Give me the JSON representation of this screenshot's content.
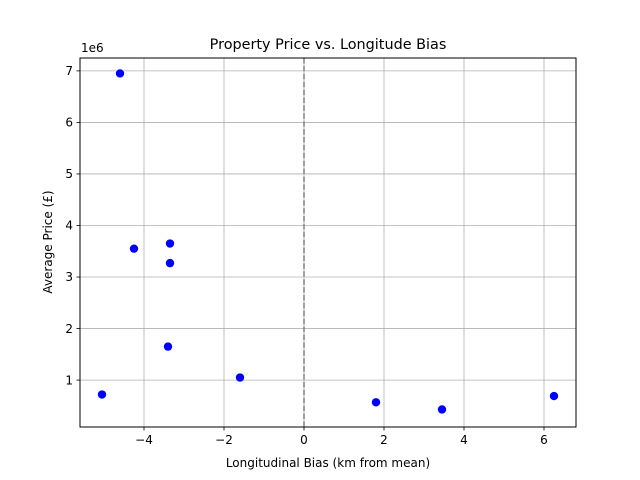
{
  "chart_data": {
    "type": "scatter",
    "title": "Property Price vs. Longitude Bias",
    "xlabel": "Longitudinal Bias (km from mean)",
    "ylabel": "Average Price (£)",
    "y_offset_label": "1e6",
    "xlim": [
      -5.6,
      6.8
    ],
    "ylim": [
      90000,
      7250000
    ],
    "x_ticks": [
      -4,
      -2,
      0,
      2,
      4,
      6
    ],
    "x_tick_labels": [
      "−4",
      "−2",
      "0",
      "2",
      "4",
      "6"
    ],
    "y_ticks": [
      1000000,
      2000000,
      3000000,
      4000000,
      5000000,
      6000000,
      7000000
    ],
    "y_tick_labels": [
      "1",
      "2",
      "3",
      "4",
      "5",
      "6",
      "7"
    ],
    "grid": true,
    "reference_line": {
      "x": 0,
      "style": "dashed",
      "color": "#808080"
    },
    "marker_color": "#0000ff",
    "points": [
      {
        "x": -5.05,
        "y": 720000
      },
      {
        "x": -4.6,
        "y": 6950000
      },
      {
        "x": -4.25,
        "y": 3550000
      },
      {
        "x": -3.35,
        "y": 3650000
      },
      {
        "x": -3.35,
        "y": 3270000
      },
      {
        "x": -3.4,
        "y": 1650000
      },
      {
        "x": -1.6,
        "y": 1050000
      },
      {
        "x": 1.8,
        "y": 570000
      },
      {
        "x": 3.45,
        "y": 430000
      },
      {
        "x": 6.25,
        "y": 690000
      }
    ]
  }
}
